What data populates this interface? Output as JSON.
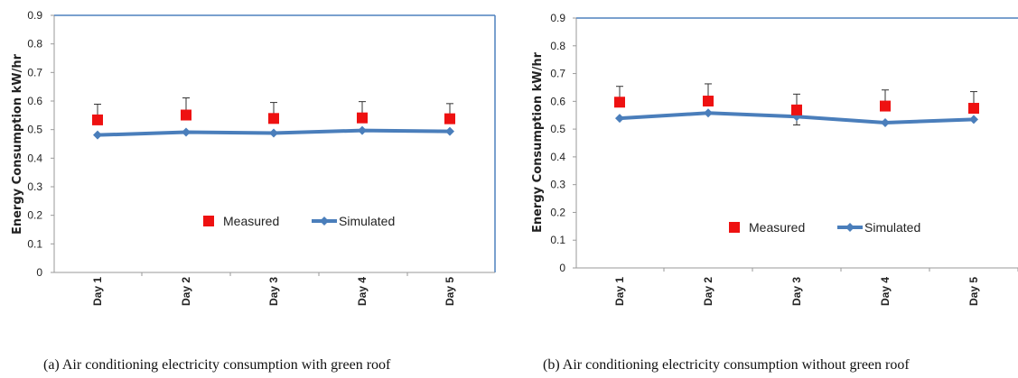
{
  "figure": {
    "captions": [
      "(a)   Air conditioning electricity consumption with green roof",
      "(b)   Air conditioning electricity consumption without green roof"
    ]
  },
  "colors": {
    "measured": "#ee1111",
    "simulated": "#4a7ebb",
    "frame": "#4f81bd"
  },
  "chart_data": [
    {
      "type": "line",
      "panel": "a",
      "categories": [
        "Day 1",
        "Day 2",
        "Day 3",
        "Day 4",
        "Day 5"
      ],
      "ylabel": "Energy Consumption kW/hr",
      "ylim": [
        0,
        0.9
      ],
      "yticks": [
        "0",
        "0.1",
        "0.2",
        "0.3",
        "0.4",
        "0.5",
        "0.6",
        "0.7",
        "0.8",
        "0.9"
      ],
      "legend_position": "center",
      "series": [
        {
          "name": "Measured",
          "style": "square-marker",
          "values": [
            0.534,
            0.551,
            0.539,
            0.541,
            0.538
          ],
          "error_plus": [
            0.055,
            0.06,
            0.056,
            0.057,
            0.053
          ]
        },
        {
          "name": "Simulated",
          "style": "line-diamond",
          "values": [
            0.481,
            0.491,
            0.488,
            0.497,
            0.494
          ]
        }
      ]
    },
    {
      "type": "line",
      "panel": "b",
      "categories": [
        "Day 1",
        "Day 2",
        "Day 3",
        "Day 4",
        "Day 5"
      ],
      "ylabel": "Energy Consumption kW/hr",
      "ylim": [
        0,
        0.9
      ],
      "yticks": [
        "0",
        "0.1",
        "0.2",
        "0.3",
        "0.4",
        "0.5",
        "0.6",
        "0.7",
        "0.8",
        "0.9"
      ],
      "legend_position": "center",
      "series": [
        {
          "name": "Measured",
          "style": "square-marker",
          "values": [
            0.597,
            0.601,
            0.569,
            0.583,
            0.575
          ],
          "error_plus": [
            0.057,
            0.062,
            0.057,
            0.058,
            0.06
          ]
        },
        {
          "name": "Simulated",
          "style": "line-diamond",
          "values": [
            0.539,
            0.558,
            0.545,
            0.523,
            0.535
          ],
          "error_minus": [
            0,
            0,
            0.03,
            0,
            0
          ]
        }
      ]
    }
  ]
}
